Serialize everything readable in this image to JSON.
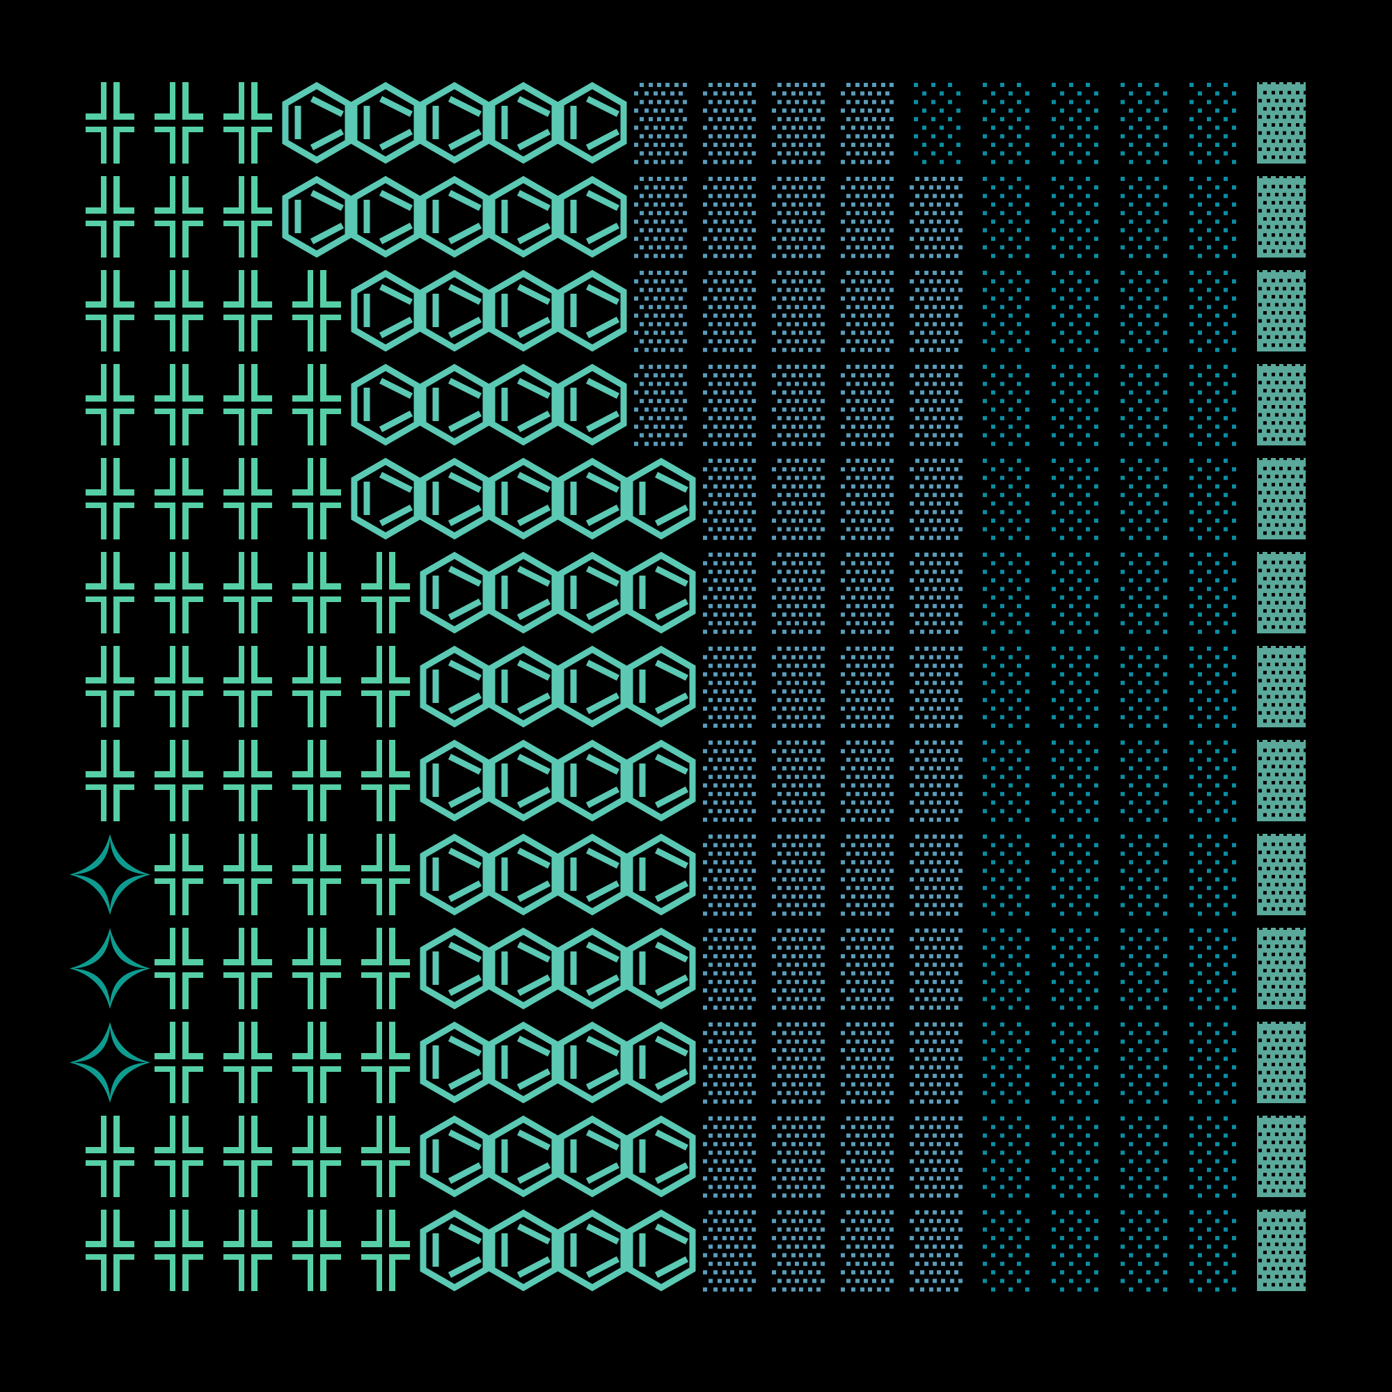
{
  "background": "#000000",
  "glyph_colors": {
    "cross": "#56cfa6",
    "hexagon": "#5bc9b3",
    "dots-dense": "#5a9cb9",
    "dots-sparse": "#0a8ea3",
    "perforated-square": "#5aa99b",
    "star": "#0e9c90"
  },
  "grid": {
    "columns": 18,
    "rows": [
      [
        {
          "glyph": "cross",
          "count": 3
        },
        {
          "glyph": "hexagon",
          "count": 5
        },
        {
          "glyph": "dots-dense",
          "count": 4
        },
        {
          "glyph": "dots-sparse",
          "count": 5
        },
        {
          "glyph": "perforated-square",
          "count": 1
        }
      ],
      [
        {
          "glyph": "cross",
          "count": 3
        },
        {
          "glyph": "hexagon",
          "count": 5
        },
        {
          "glyph": "dots-dense",
          "count": 5
        },
        {
          "glyph": "dots-sparse",
          "count": 4
        },
        {
          "glyph": "perforated-square",
          "count": 1
        }
      ],
      [
        {
          "glyph": "cross",
          "count": 4
        },
        {
          "glyph": "hexagon",
          "count": 4
        },
        {
          "glyph": "dots-dense",
          "count": 5
        },
        {
          "glyph": "dots-sparse",
          "count": 4
        },
        {
          "glyph": "perforated-square",
          "count": 1
        }
      ],
      [
        {
          "glyph": "cross",
          "count": 4
        },
        {
          "glyph": "hexagon",
          "count": 4
        },
        {
          "glyph": "dots-dense",
          "count": 5
        },
        {
          "glyph": "dots-sparse",
          "count": 4
        },
        {
          "glyph": "perforated-square",
          "count": 1
        }
      ],
      [
        {
          "glyph": "cross",
          "count": 4
        },
        {
          "glyph": "hexagon",
          "count": 5
        },
        {
          "glyph": "dots-dense",
          "count": 4
        },
        {
          "glyph": "dots-sparse",
          "count": 4
        },
        {
          "glyph": "perforated-square",
          "count": 1
        }
      ],
      [
        {
          "glyph": "cross",
          "count": 5
        },
        {
          "glyph": "hexagon",
          "count": 4
        },
        {
          "glyph": "dots-dense",
          "count": 4
        },
        {
          "glyph": "dots-sparse",
          "count": 4
        },
        {
          "glyph": "perforated-square",
          "count": 1
        }
      ],
      [
        {
          "glyph": "cross",
          "count": 5
        },
        {
          "glyph": "hexagon",
          "count": 4
        },
        {
          "glyph": "dots-dense",
          "count": 4
        },
        {
          "glyph": "dots-sparse",
          "count": 4
        },
        {
          "glyph": "perforated-square",
          "count": 1
        }
      ],
      [
        {
          "glyph": "cross",
          "count": 5
        },
        {
          "glyph": "hexagon",
          "count": 4
        },
        {
          "glyph": "dots-dense",
          "count": 4
        },
        {
          "glyph": "dots-sparse",
          "count": 4
        },
        {
          "glyph": "perforated-square",
          "count": 1
        }
      ],
      [
        {
          "glyph": "star",
          "count": 1
        },
        {
          "glyph": "cross",
          "count": 4
        },
        {
          "glyph": "hexagon",
          "count": 4
        },
        {
          "glyph": "dots-dense",
          "count": 4
        },
        {
          "glyph": "dots-sparse",
          "count": 4
        },
        {
          "glyph": "perforated-square",
          "count": 1
        }
      ],
      [
        {
          "glyph": "star",
          "count": 1
        },
        {
          "glyph": "cross",
          "count": 4
        },
        {
          "glyph": "hexagon",
          "count": 4
        },
        {
          "glyph": "dots-dense",
          "count": 4
        },
        {
          "glyph": "dots-sparse",
          "count": 4
        },
        {
          "glyph": "perforated-square",
          "count": 1
        }
      ],
      [
        {
          "glyph": "star",
          "count": 1
        },
        {
          "glyph": "cross",
          "count": 4
        },
        {
          "glyph": "hexagon",
          "count": 4
        },
        {
          "glyph": "dots-dense",
          "count": 4
        },
        {
          "glyph": "dots-sparse",
          "count": 4
        },
        {
          "glyph": "perforated-square",
          "count": 1
        }
      ],
      [
        {
          "glyph": "cross",
          "count": 5
        },
        {
          "glyph": "hexagon",
          "count": 4
        },
        {
          "glyph": "dots-dense",
          "count": 4
        },
        {
          "glyph": "dots-sparse",
          "count": 4
        },
        {
          "glyph": "perforated-square",
          "count": 1
        }
      ],
      [
        {
          "glyph": "cross",
          "count": 5
        },
        {
          "glyph": "hexagon",
          "count": 4
        },
        {
          "glyph": "dots-dense",
          "count": 4
        },
        {
          "glyph": "dots-sparse",
          "count": 4
        },
        {
          "glyph": "perforated-square",
          "count": 1
        }
      ]
    ]
  }
}
